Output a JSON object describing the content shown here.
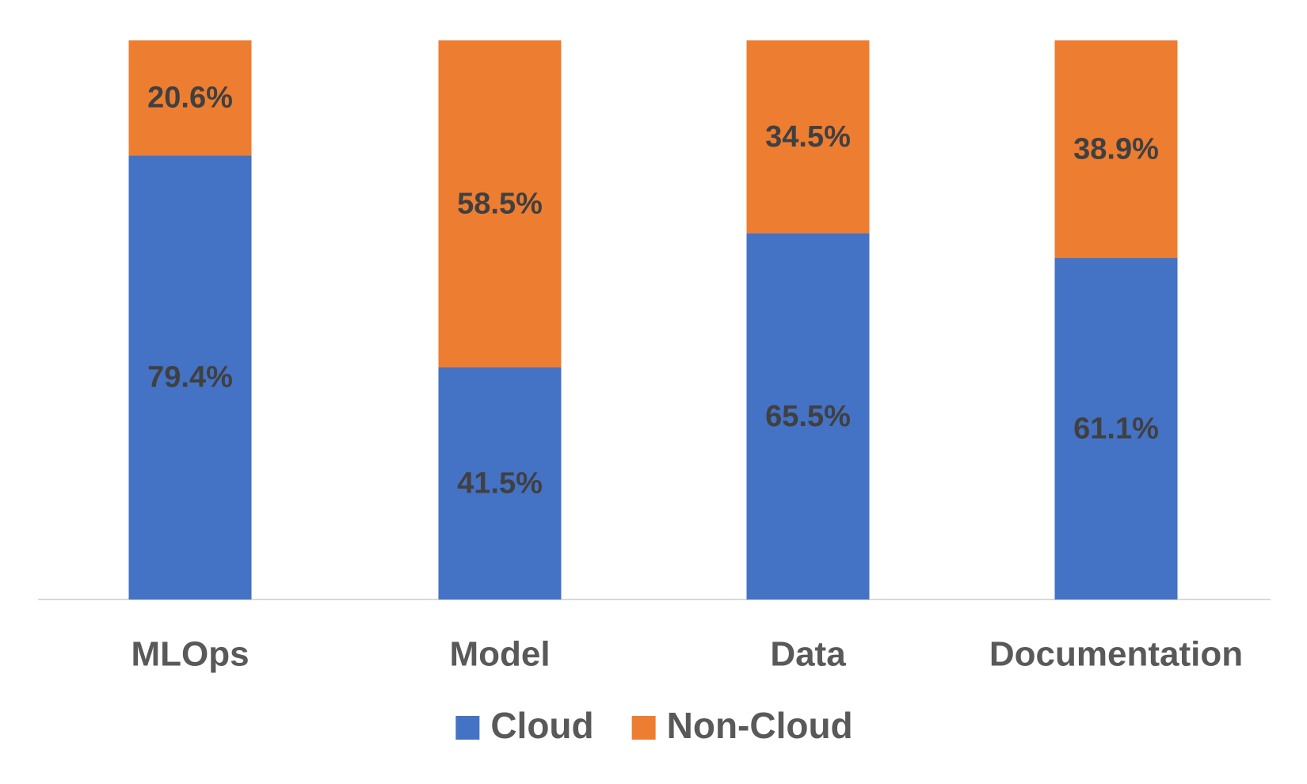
{
  "chart_data": {
    "type": "stacked_bar",
    "categories": [
      "MLOps",
      "Model",
      "Data",
      "Documentation"
    ],
    "series": [
      {
        "name": "Cloud",
        "color": "#4472c4",
        "values": [
          79.4,
          41.5,
          65.5,
          61.1
        ],
        "value_labels": [
          "79.4%",
          "41.5%",
          "65.5%",
          "61.1%"
        ]
      },
      {
        "name": "Non-Cloud",
        "color": "#ed7d31",
        "values": [
          20.6,
          58.5,
          34.5,
          38.9
        ],
        "value_labels": [
          "20.6%",
          "58.5%",
          "34.5%",
          "38.9%"
        ]
      }
    ],
    "ylim": [
      0,
      100
    ],
    "legend": "bottom"
  }
}
